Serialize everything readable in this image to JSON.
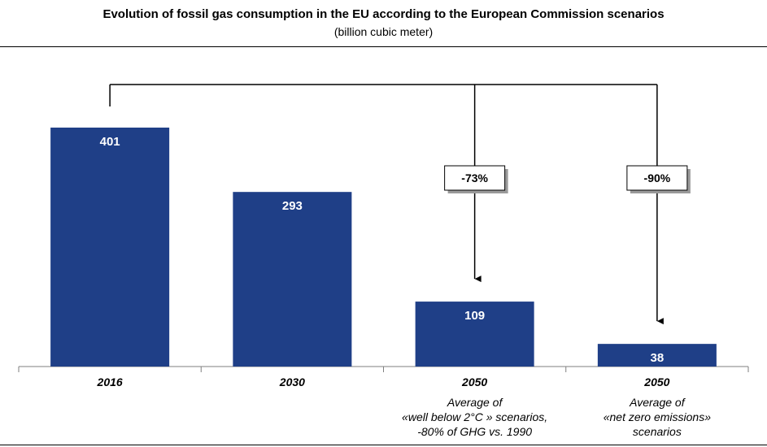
{
  "chart_data": {
    "type": "bar",
    "title": "Evolution of fossil gas consumption in the EU according to the European Commission scenarios",
    "subtitle": "(billion cubic meter)",
    "categories": [
      "2016",
      "2030",
      "2050",
      "2050"
    ],
    "values": [
      401,
      293,
      109,
      38
    ],
    "data_labels": [
      "401",
      "293",
      "109",
      "38"
    ],
    "category_descriptions": [
      [],
      [],
      [
        "Average of",
        "«well below 2°C » scenarios,",
        "-80% of GHG vs. 1990"
      ],
      [
        "Average of",
        "«net zero emissions»",
        "scenarios"
      ]
    ],
    "annotations": [
      {
        "label": "-73%",
        "from": "2016",
        "to_index": 2
      },
      {
        "label": "-90%",
        "from": "2016",
        "to_index": 3
      }
    ],
    "ylim": [
      0,
      401
    ],
    "grid": false,
    "colors": {
      "bar": "#1f3f87",
      "box_shadow": "#9a9a9a"
    }
  }
}
